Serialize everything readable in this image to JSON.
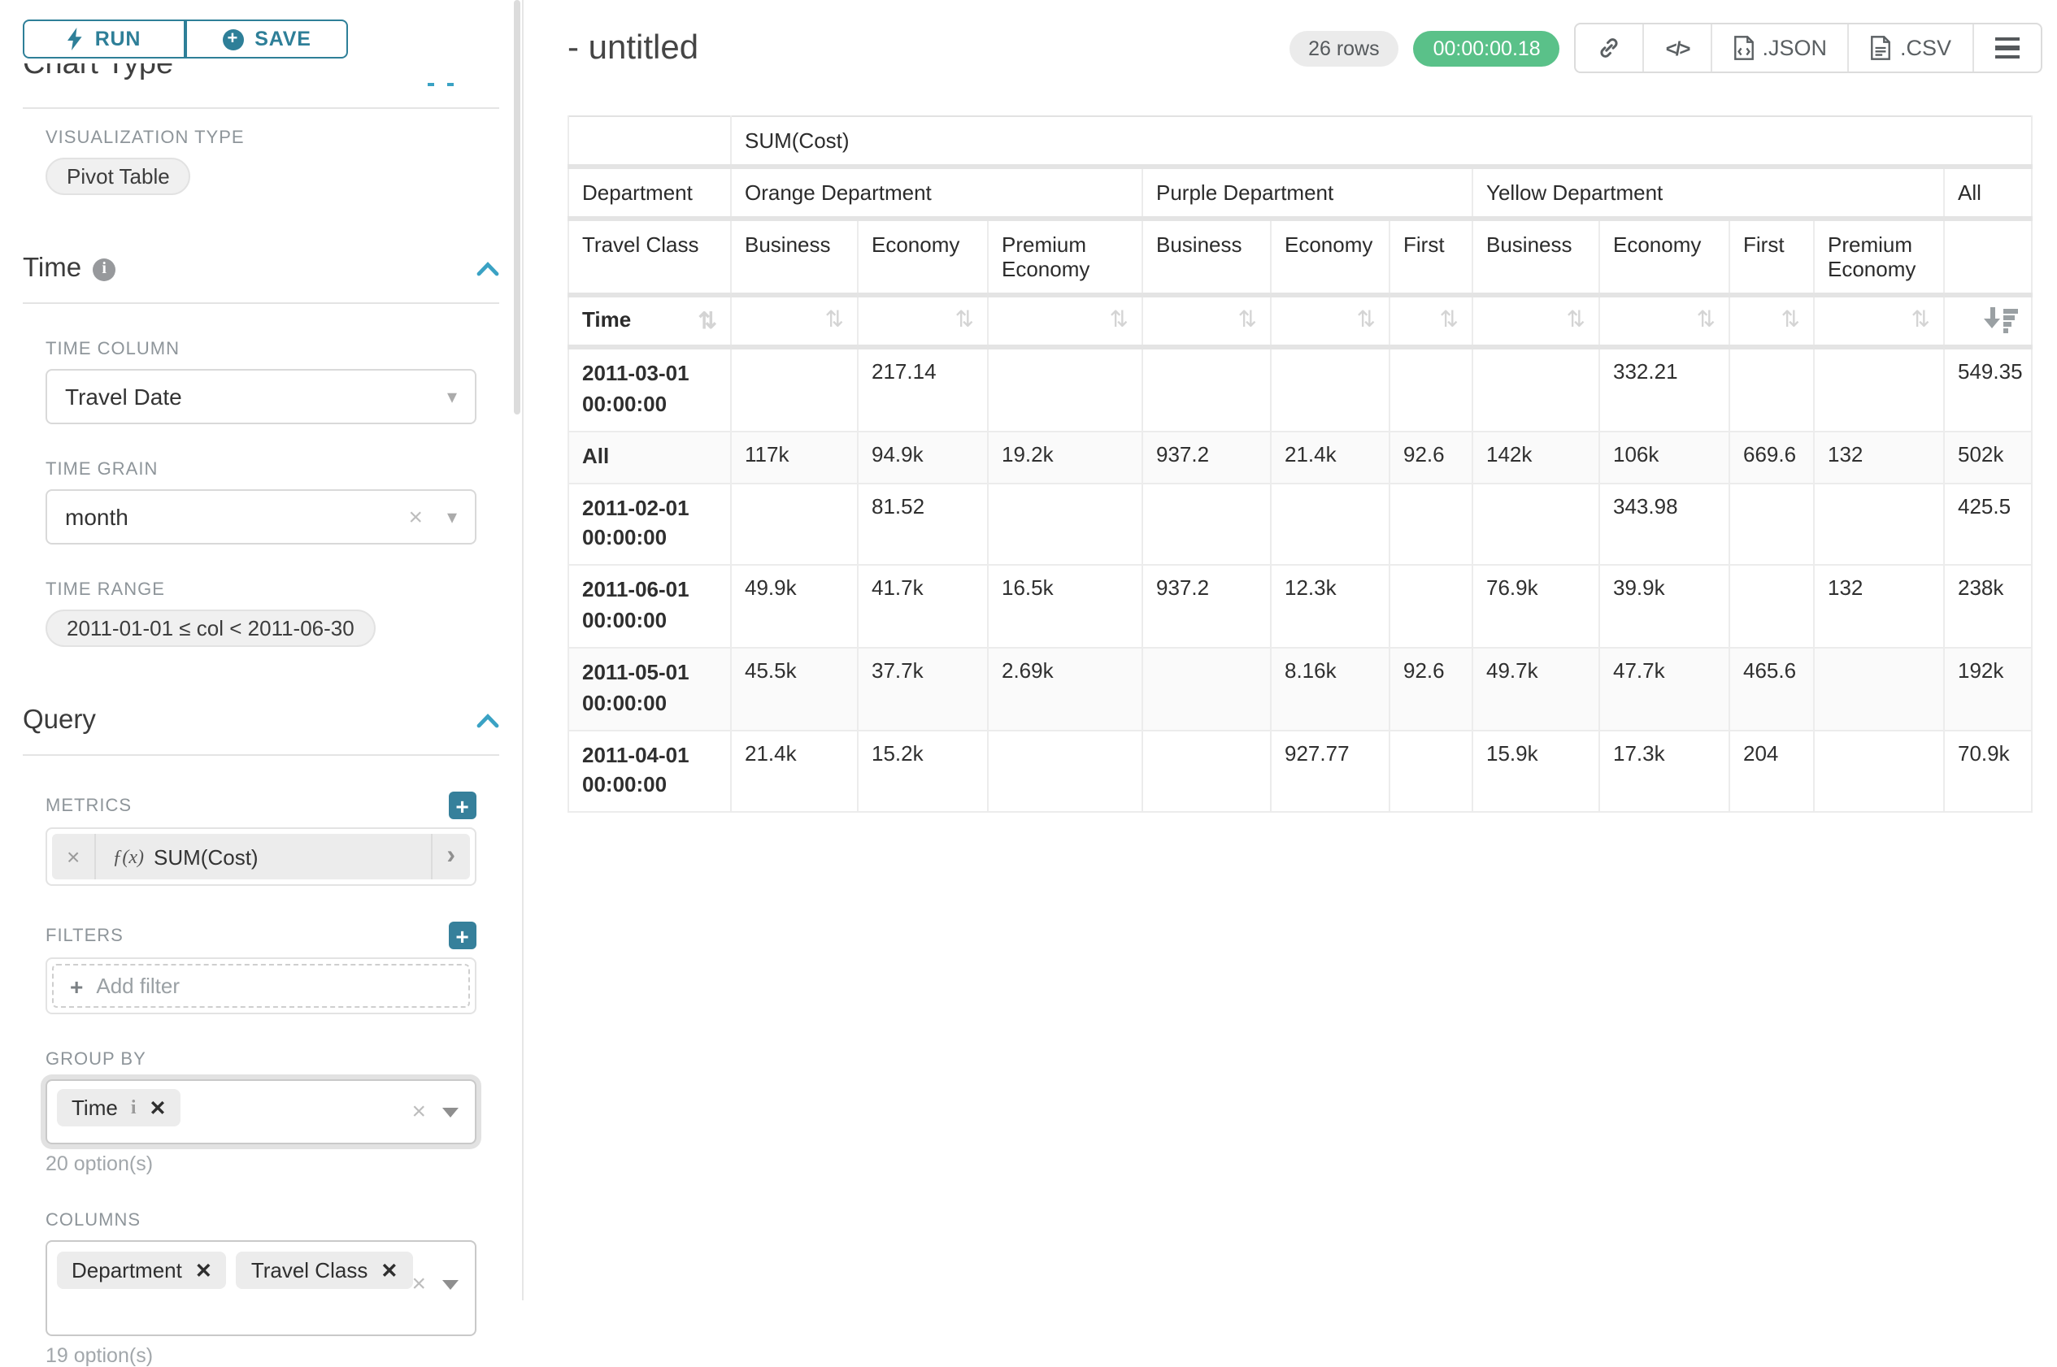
{
  "sidebar": {
    "run_label": "RUN",
    "save_label": "SAVE",
    "chart_type_heading": "Chart Type",
    "viz": {
      "label": "VISUALIZATION TYPE",
      "value": "Pivot Table"
    },
    "time": {
      "title": "Time",
      "column_label": "TIME COLUMN",
      "column_value": "Travel Date",
      "grain_label": "TIME GRAIN",
      "grain_value": "month",
      "range_label": "TIME RANGE",
      "range_value": "2011-01-01 ≤ col < 2011-06-30"
    },
    "query": {
      "title": "Query",
      "metrics_label": "METRICS",
      "metric_fx": "ƒ(x)",
      "metric_value": "SUM(Cost)",
      "filters_label": "FILTERS",
      "add_filter_label": "Add filter",
      "group_by_label": "GROUP BY",
      "group_by_chip": "Time",
      "group_by_options": "20 option(s)",
      "columns_label": "COLUMNS",
      "columns_chips": [
        "Department",
        "Travel Class"
      ],
      "columns_options": "19 option(s)"
    }
  },
  "header": {
    "title": "- untitled",
    "rows_badge": "26 rows",
    "timer": "00:00:00.18",
    "code_icon_label": "</>",
    "json_label": ".JSON",
    "csv_label": ".CSV"
  },
  "icons": {
    "run": "lightning-bolt",
    "save": "plus-circle",
    "section_collapse": "chevron-up",
    "time_info": "info-circle",
    "share": "link",
    "embed": "code",
    "export_json": "file-json",
    "export_csv": "file-csv",
    "more": "hamburger-menu",
    "sort_neutral": "sort-up-down",
    "sort_active": "sort-amount-desc"
  },
  "colors": {
    "accent_teal": "#2e7f98",
    "plus_button_teal": "#36809b",
    "collapse_blue": "#3aa2c4",
    "timer_green": "#5ac189",
    "badge_gray": "#ebebeb"
  },
  "chart_data": {
    "type": "table",
    "metric": "SUM(Cost)",
    "corner_row2": "Department",
    "corner_row3": "Travel Class",
    "row_dimension": "Time",
    "column_groups": [
      {
        "label": "Orange Department",
        "columns": [
          "Business",
          "Economy",
          "Premium Economy"
        ]
      },
      {
        "label": "Purple Department",
        "columns": [
          "Business",
          "Economy",
          "First"
        ]
      },
      {
        "label": "Yellow Department",
        "columns": [
          "Business",
          "Economy",
          "First",
          "Premium Economy"
        ]
      },
      {
        "label": "All",
        "columns": [
          ""
        ]
      }
    ],
    "rows": [
      {
        "label": "2011-03-01 00:00:00",
        "values": [
          "",
          "217.14",
          "",
          "",
          "",
          "",
          "",
          "332.21",
          "",
          "",
          "549.35"
        ]
      },
      {
        "label": "All",
        "values": [
          "117k",
          "94.9k",
          "19.2k",
          "937.2",
          "21.4k",
          "92.6",
          "142k",
          "106k",
          "669.6",
          "132",
          "502k"
        ]
      },
      {
        "label": "2011-02-01 00:00:00",
        "values": [
          "",
          "81.52",
          "",
          "",
          "",
          "",
          "",
          "343.98",
          "",
          "",
          "425.5"
        ]
      },
      {
        "label": "2011-06-01 00:00:00",
        "values": [
          "49.9k",
          "41.7k",
          "16.5k",
          "937.2",
          "12.3k",
          "",
          "76.9k",
          "39.9k",
          "",
          "132",
          "238k"
        ]
      },
      {
        "label": "2011-05-01 00:00:00",
        "values": [
          "45.5k",
          "37.7k",
          "2.69k",
          "",
          "8.16k",
          "92.6",
          "49.7k",
          "47.7k",
          "465.6",
          "",
          "192k"
        ]
      },
      {
        "label": "2011-04-01 00:00:00",
        "values": [
          "21.4k",
          "15.2k",
          "",
          "",
          "927.77",
          "",
          "15.9k",
          "17.3k",
          "204",
          "",
          "70.9k"
        ]
      }
    ]
  }
}
